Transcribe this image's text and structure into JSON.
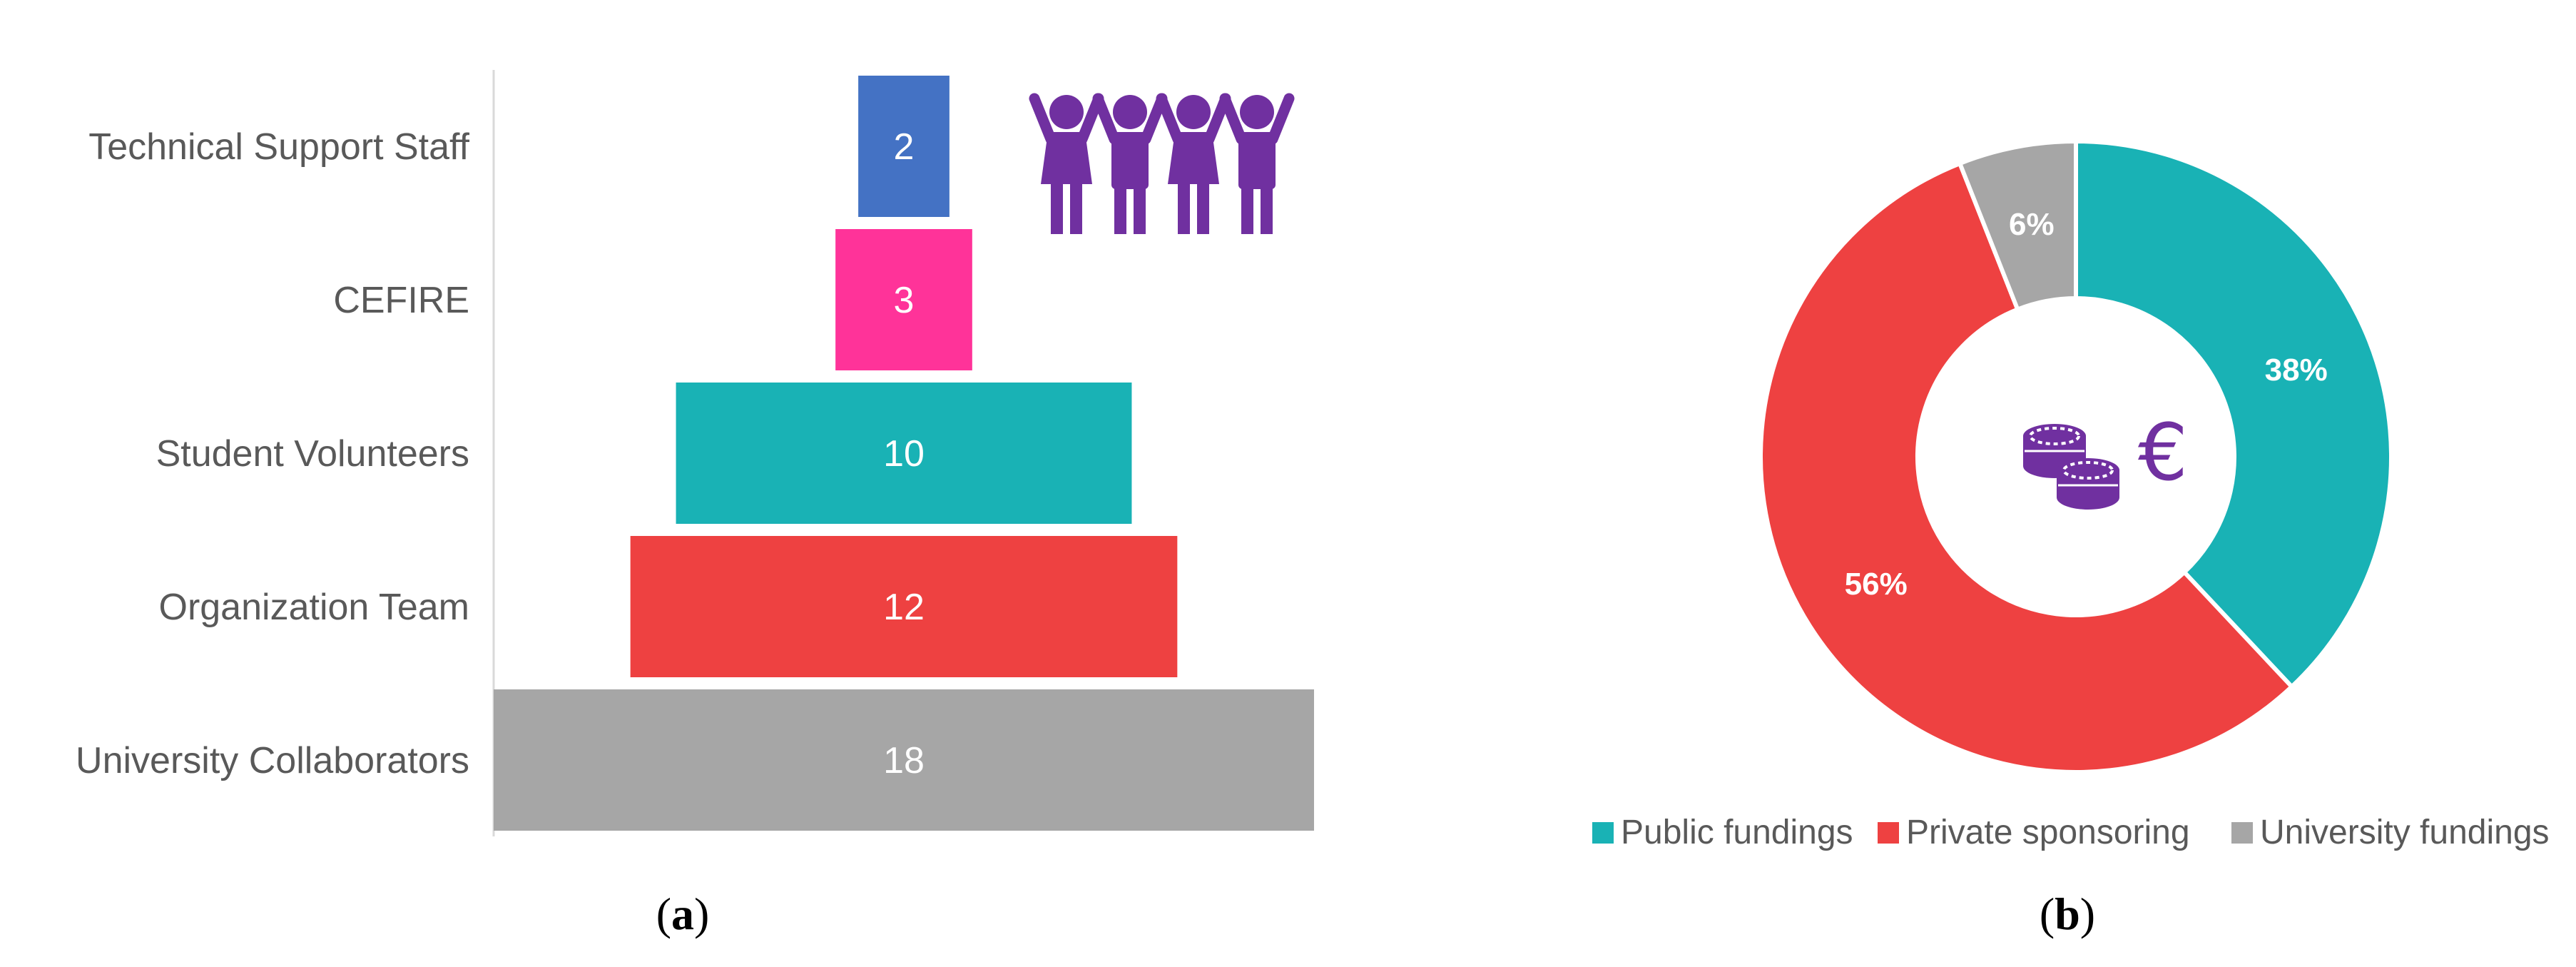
{
  "chart_data": [
    {
      "type": "bar",
      "orientation": "horizontal-centered",
      "categories": [
        "Technical Support Staff",
        "CEFIRE",
        "Student Volunteers",
        "Organization Team",
        "University Collaborators"
      ],
      "values": [
        2,
        3,
        10,
        12,
        18
      ],
      "data_labels": [
        "2",
        "3",
        "10",
        "12",
        "18"
      ],
      "colors": [
        "#4472c4",
        "#ff3399",
        "#19b2b5",
        "#ee4141",
        "#a6a6a6"
      ],
      "icon": "people-holding-hands-icon",
      "icon_color": "#7030a0",
      "grid": false,
      "caption": {
        "open": "(",
        "letter": "a",
        "close": ")"
      }
    },
    {
      "type": "pie",
      "style": "donut",
      "slices": [
        {
          "name": "Public fundings",
          "value": 38,
          "label": "38%",
          "color": "#19b2b5"
        },
        {
          "name": "Private sponsoring",
          "value": 56,
          "label": "56%",
          "color": "#ee4141"
        },
        {
          "name": "University fundings",
          "value": 6,
          "label": "6%",
          "color": "#a6a6a6"
        }
      ],
      "center_icons": [
        "coins-icon",
        "euro-icon"
      ],
      "center_text": "€",
      "icon_color": "#7030a0",
      "legend_position": "bottom",
      "caption": {
        "open": "(",
        "letter": "b",
        "close": ")"
      }
    }
  ]
}
